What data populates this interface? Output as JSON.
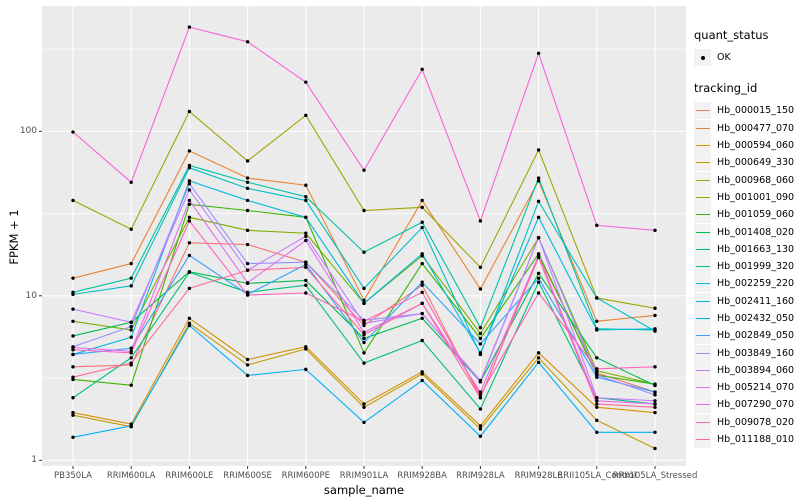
{
  "figure": {
    "x_axis_title": "sample_name",
    "y_axis_title": "FPKM + 1",
    "panel_bg": "#ebebeb",
    "gridline_color": "#ffffff",
    "tick_color": "#333333",
    "tick_label_color": "#4d4d4d",
    "point_color": "#000000",
    "y_ticks": [
      {
        "label": "1",
        "value": 1
      },
      {
        "label": "10",
        "value": 10
      },
      {
        "label": "100",
        "value": 100
      }
    ]
  },
  "legend": {
    "quant_status_title": "quant_status",
    "ok_label": "OK",
    "tracking_id_title": "tracking_id"
  },
  "chart_data": {
    "type": "line",
    "xlabel": "sample_name",
    "ylabel": "FPKM + 1",
    "y_scale": "log10",
    "ylim": [
      0.9,
      560
    ],
    "legend_position": "right",
    "grid": "on",
    "y_major_gridlines": [
      1,
      10,
      100
    ],
    "y_minor_gridlines": [
      3.162,
      31.62,
      316.2
    ],
    "marker": "black point (quant_status OK) on every value",
    "categories": [
      "PB350LA",
      "RRIM600LA",
      "RRIM600LE",
      "RRIM600SE",
      "RRIM600PE",
      "RRIM901LA",
      "RRIM928BA",
      "RRIM928LA",
      "RRIM928LE",
      "RRII105LA_Control",
      "RRII105LA_Stressed"
    ],
    "series": [
      {
        "name": "Hb_000015_150",
        "color": "#F8766D",
        "values": [
          3.7,
          3.8,
          21,
          20.5,
          16,
          6.6,
          11.6,
          2.4,
          17.5,
          3.4,
          2.6
        ]
      },
      {
        "name": "Hb_000477_070",
        "color": "#EA8331",
        "values": [
          12.8,
          15.7,
          76,
          52,
          47,
          9.4,
          38,
          11,
          50,
          7.0,
          7.6
        ]
      },
      {
        "name": "Hb_000594_060",
        "color": "#D89000",
        "values": [
          1.95,
          1.66,
          7.3,
          4.1,
          4.9,
          2.2,
          3.45,
          1.62,
          4.5,
          2.1,
          1.95
        ]
      },
      {
        "name": "Hb_000649_330",
        "color": "#C09B00",
        "values": [
          1.88,
          1.6,
          6.8,
          3.8,
          4.75,
          2.1,
          3.35,
          1.55,
          4.2,
          1.75,
          1.18
        ]
      },
      {
        "name": "Hb_000968_060",
        "color": "#A3A500",
        "values": [
          38,
          25.4,
          132,
          66,
          125,
          33,
          34.5,
          14.9,
          77,
          9.7,
          8.4
        ]
      },
      {
        "name": "Hb_001001_090",
        "color": "#7CAE00",
        "values": [
          7.0,
          6.2,
          30,
          25,
          24,
          9.0,
          17.5,
          5.9,
          22.5,
          3.5,
          2.9
        ]
      },
      {
        "name": "Hb_001059_060",
        "color": "#39B600",
        "values": [
          3.1,
          2.86,
          36,
          33,
          30,
          4.5,
          15.7,
          5.5,
          18,
          3.3,
          2.9
        ]
      },
      {
        "name": "Hb_001408_020",
        "color": "#00BB4E",
        "values": [
          5.7,
          6.9,
          14,
          11.9,
          12.4,
          5.5,
          7.3,
          3.0,
          13.7,
          4.2,
          2.85
        ]
      },
      {
        "name": "Hb_001663_130",
        "color": "#00BF7D",
        "values": [
          2.4,
          4.2,
          13.9,
          10.5,
          11.6,
          3.9,
          5.35,
          2.05,
          12.1,
          2.4,
          2.2
        ]
      },
      {
        "name": "Hb_001999_320",
        "color": "#00C1A3",
        "values": [
          10.5,
          12.8,
          62,
          49,
          40,
          18.4,
          28,
          6.4,
          52,
          6.3,
          6.2
        ]
      },
      {
        "name": "Hb_002259_220",
        "color": "#00BFC4",
        "values": [
          10.2,
          11.5,
          60,
          45,
          38,
          11.1,
          26,
          4.4,
          37.5,
          9.7,
          6.1
        ]
      },
      {
        "name": "Hb_002411_160",
        "color": "#00BAE0",
        "values": [
          4.4,
          5.6,
          50,
          38,
          30,
          9.0,
          18,
          4.5,
          30,
          6.2,
          6.3
        ]
      },
      {
        "name": "Hb_002432_050",
        "color": "#00B0F6",
        "values": [
          1.38,
          1.62,
          6.6,
          3.28,
          3.57,
          1.7,
          3.06,
          1.4,
          3.94,
          1.48,
          1.48
        ]
      },
      {
        "name": "Hb_002849_050",
        "color": "#35A2FF",
        "values": [
          4.4,
          4.8,
          17.6,
          10.2,
          15.5,
          5.2,
          12.1,
          5.1,
          12.8,
          3.2,
          2.6
        ]
      },
      {
        "name": "Hb_003849_160",
        "color": "#9590FF",
        "values": [
          4.9,
          6.5,
          48,
          15.7,
          16,
          7.1,
          7.8,
          3.0,
          22.6,
          3.3,
          2.5
        ]
      },
      {
        "name": "Hb_003894_060",
        "color": "#C77CFF",
        "values": [
          8.3,
          6.9,
          44,
          14.3,
          23,
          6.8,
          7.8,
          3.05,
          22.6,
          2.4,
          2.3
        ]
      },
      {
        "name": "Hb_005214_070",
        "color": "#E76BF3",
        "values": [
          4.85,
          4.6,
          38,
          12,
          21.7,
          6.0,
          9.0,
          2.6,
          17.6,
          2.3,
          2.2
        ]
      },
      {
        "name": "Hb_007290_070",
        "color": "#FA62DB",
        "values": [
          99,
          49,
          430,
          350,
          199,
          58,
          238,
          28.5,
          298,
          26.8,
          25
        ]
      },
      {
        "name": "Hb_009078_020",
        "color": "#FF62BC",
        "values": [
          4.7,
          4.5,
          28.5,
          10.1,
          10.4,
          7.0,
          10.5,
          2.5,
          10.4,
          3.6,
          3.7
        ]
      },
      {
        "name": "Hb_011188_010",
        "color": "#FF6A98",
        "values": [
          3.2,
          3.9,
          11.1,
          14.3,
          14.9,
          5.8,
          9.0,
          2.4,
          17.1,
          2.2,
          2.1
        ]
      }
    ]
  }
}
